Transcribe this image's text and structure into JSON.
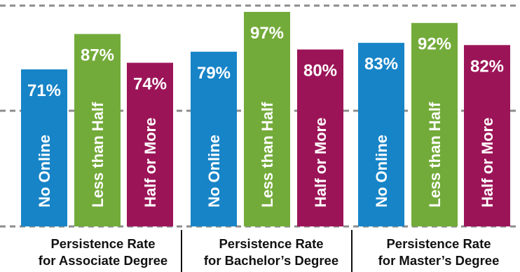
{
  "chart_data": {
    "type": "bar",
    "title": "",
    "ylim": [
      0,
      100
    ],
    "grid": "dashed",
    "groups": [
      {
        "line1": "Persistence Rate",
        "line2": "for Associate Degree",
        "bars": [
          {
            "label": "No Online",
            "value": 71,
            "value_text": "71%",
            "color": "#1784c7"
          },
          {
            "label": "Less than Half",
            "value": 87,
            "value_text": "87%",
            "color": "#73ab3a"
          },
          {
            "label": "Half or More",
            "value": 74,
            "value_text": "74%",
            "color": "#9c1458"
          }
        ]
      },
      {
        "line1": "Persistence Rate",
        "line2": "for Bachelor’s Degree",
        "bars": [
          {
            "label": "No Online",
            "value": 79,
            "value_text": "79%",
            "color": "#1784c7"
          },
          {
            "label": "Less than Half",
            "value": 97,
            "value_text": "97%",
            "color": "#73ab3a"
          },
          {
            "label": "Half or More",
            "value": 80,
            "value_text": "80%",
            "color": "#9c1458"
          }
        ]
      },
      {
        "line1": "Persistence Rate",
        "line2": "for Master’s Degree",
        "bars": [
          {
            "label": "No Online",
            "value": 83,
            "value_text": "83%",
            "color": "#1784c7"
          },
          {
            "label": "Less than Half",
            "value": 92,
            "value_text": "92%",
            "color": "#73ab3a"
          },
          {
            "label": "Half or More",
            "value": 82,
            "value_text": "82%",
            "color": "#9c1458"
          }
        ]
      }
    ]
  }
}
